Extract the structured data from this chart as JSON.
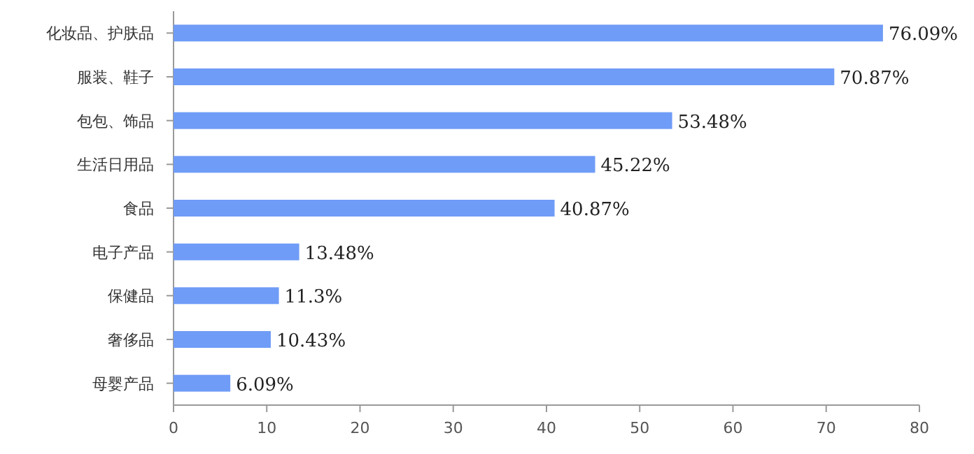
{
  "chart_data": {
    "type": "bar",
    "orientation": "horizontal",
    "categories": [
      "化妆品、护肤品",
      "服装、鞋子",
      "包包、饰品",
      "生活日用品",
      "食品",
      "电子产品",
      "保健品",
      "奢侈品",
      "母婴产品"
    ],
    "values": [
      76.09,
      70.87,
      53.48,
      45.22,
      40.87,
      13.48,
      11.3,
      10.43,
      6.09
    ],
    "value_labels": [
      "76.09%",
      "70.87%",
      "53.48%",
      "45.22%",
      "40.87%",
      "13.48%",
      "11.3%",
      "10.43%",
      "6.09%"
    ],
    "color": "#6f9cf7",
    "xlim": [
      0,
      80
    ],
    "xticks": [
      0,
      10,
      20,
      30,
      40,
      50,
      60,
      70,
      80
    ]
  }
}
